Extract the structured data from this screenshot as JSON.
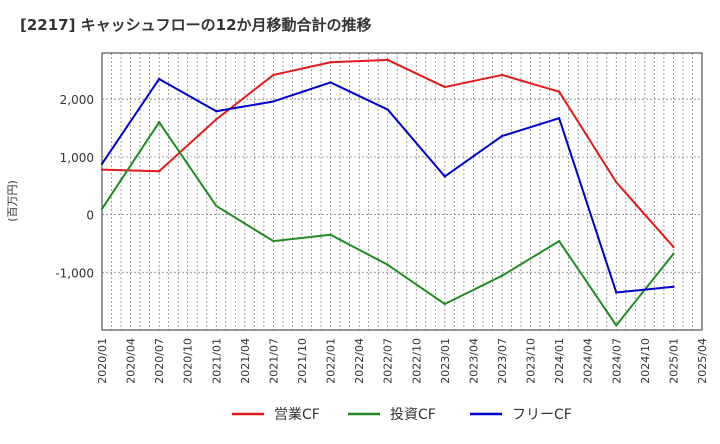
{
  "chart_data": {
    "type": "line",
    "title": "[2217]  キャッシュフローの12か月移動合計の推移",
    "ylabel": "(百万円)",
    "xlabel": "",
    "ylim": [
      -2000,
      2800
    ],
    "yticks": [
      -1000,
      0,
      1000,
      2000
    ],
    "ytick_labels": [
      "-1,000",
      "0",
      "1,000",
      "2,000"
    ],
    "x_ticks": [
      "2020/01",
      "2020/04",
      "2020/07",
      "2020/10",
      "2021/01",
      "2021/04",
      "2021/07",
      "2021/10",
      "2022/01",
      "2022/04",
      "2022/07",
      "2022/10",
      "2023/01",
      "2023/04",
      "2023/07",
      "2023/10",
      "2024/01",
      "2024/04",
      "2024/07",
      "2024/10",
      "2025/01",
      "2025/04"
    ],
    "x": [
      "2020/01",
      "2020/07",
      "2021/01",
      "2021/07",
      "2022/01",
      "2022/07",
      "2023/01",
      "2023/07",
      "2024/01",
      "2024/07",
      "2025/01"
    ],
    "grid": true,
    "legend_position": "bottom",
    "series": [
      {
        "name": "営業CF",
        "color": "#e31a1c",
        "values": [
          780,
          750,
          1650,
          2420,
          2640,
          2680,
          2210,
          2420,
          2130,
          560,
          -560
        ]
      },
      {
        "name": "投資CF",
        "color": "#228b22",
        "values": [
          100,
          1600,
          150,
          -460,
          -350,
          -870,
          -1550,
          -1060,
          -460,
          -1920,
          -680
        ]
      },
      {
        "name": "フリーCF",
        "color": "#0000cd",
        "values": [
          880,
          2350,
          1790,
          1960,
          2290,
          1820,
          660,
          1360,
          1670,
          -1350,
          -1250
        ]
      }
    ]
  }
}
